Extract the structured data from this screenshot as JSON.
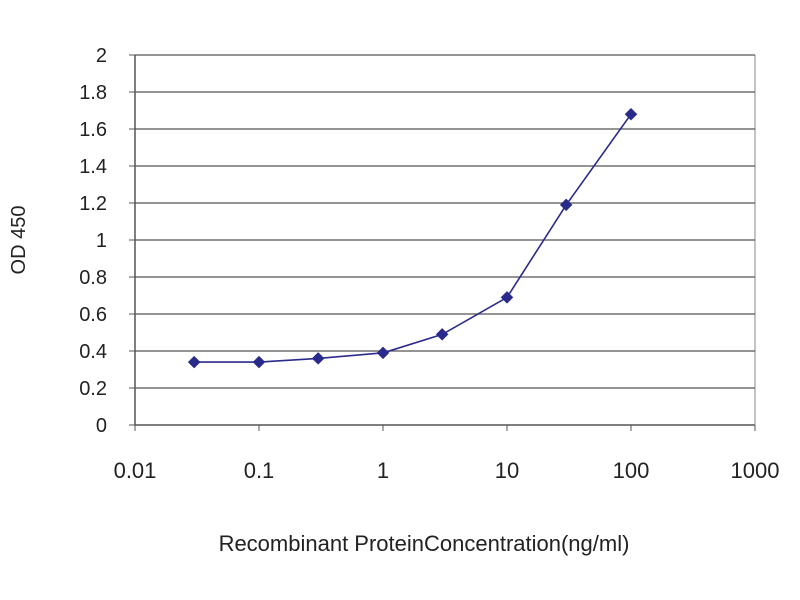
{
  "chart_data": {
    "type": "line",
    "xlabel": "Recombinant ProteinConcentration(ng/ml)",
    "ylabel": "OD 450",
    "x_scale": "log",
    "xlim": [
      0.01,
      1000
    ],
    "ylim": [
      0,
      2
    ],
    "x_ticks": [
      0.01,
      0.1,
      1,
      10,
      100,
      1000
    ],
    "x_tick_labels": [
      "0.01",
      "0.1",
      "1",
      "10",
      "100",
      "1000"
    ],
    "y_ticks": [
      0,
      0.2,
      0.4,
      0.6,
      0.8,
      1,
      1.2,
      1.4,
      1.6,
      1.8,
      2
    ],
    "y_tick_labels": [
      "0",
      "0.2",
      "0.4",
      "0.6",
      "0.8",
      "1",
      "1.2",
      "1.4",
      "1.6",
      "1.8",
      "2"
    ],
    "grid": "horizontal",
    "series": [
      {
        "x": [
          0.03,
          0.1,
          0.3,
          1,
          3,
          10,
          30,
          100
        ],
        "y": [
          0.34,
          0.34,
          0.36,
          0.39,
          0.49,
          0.69,
          1.19,
          1.68
        ]
      }
    ],
    "colors": {
      "series": "#2a2a8c",
      "grid": "#555555",
      "axis": "#555555",
      "background": "#ffffff"
    }
  }
}
